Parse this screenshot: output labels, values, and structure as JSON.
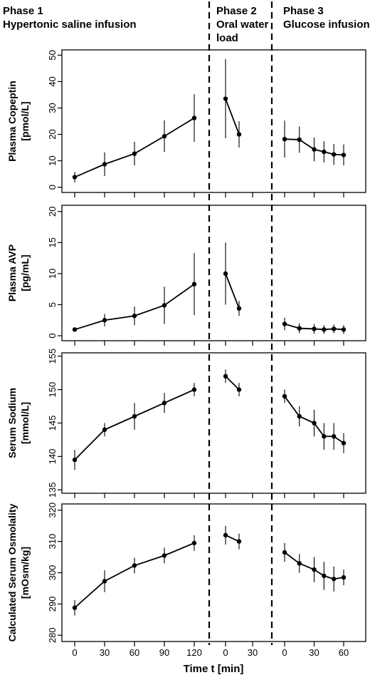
{
  "phases": [
    {
      "line1": "Phase 1",
      "line2": "Hypertonic saline infusion",
      "line3": ""
    },
    {
      "line1": "Phase 2",
      "line2": "Oral water",
      "line3": "load"
    },
    {
      "line1": "Phase 3",
      "line2": "Glucose infusion",
      "line3": ""
    }
  ],
  "x_axis": {
    "title": "Time t [min]",
    "tick_labels": [
      "0",
      "30",
      "60",
      "90",
      "120",
      "0",
      "30",
      "0",
      "30",
      "60"
    ]
  },
  "colors": {
    "line": "#000000",
    "background": "#ffffff"
  },
  "chart_data": [
    {
      "type": "line",
      "ylabel": [
        "Plasma Copeptin",
        "[pmol/L]"
      ],
      "ylim": [
        -2,
        52
      ],
      "yticks": [
        0,
        10,
        20,
        30,
        40,
        50
      ],
      "series": [
        {
          "phase": 1,
          "x": [
            0,
            30,
            60,
            90,
            120
          ],
          "y": [
            3.8,
            8.7,
            12.7,
            19.3,
            26.2
          ],
          "err": [
            2.0,
            4.5,
            4.5,
            6.0,
            9.0
          ]
        },
        {
          "phase": 2,
          "x": [
            0,
            15
          ],
          "y": [
            33.5,
            20.0
          ],
          "err": [
            15.0,
            5.0
          ]
        },
        {
          "phase": 3,
          "x": [
            0,
            15,
            30,
            40,
            50,
            60
          ],
          "y": [
            18.2,
            18.0,
            14.3,
            13.4,
            12.4,
            12.2
          ],
          "err": [
            7.0,
            5.0,
            4.5,
            4.0,
            4.0,
            4.0
          ]
        }
      ]
    },
    {
      "type": "line",
      "ylabel": [
        "Plasma AVP",
        "[pg/mL]"
      ],
      "ylim": [
        -0.8,
        21
      ],
      "yticks": [
        0,
        5,
        10,
        15,
        20
      ],
      "series": [
        {
          "phase": 1,
          "x": [
            0,
            30,
            60,
            90,
            120
          ],
          "y": [
            1.0,
            2.5,
            3.2,
            4.9,
            8.3
          ],
          "err": [
            0.3,
            1.0,
            1.5,
            3.0,
            5.0
          ]
        },
        {
          "phase": 2,
          "x": [
            0,
            15
          ],
          "y": [
            10.0,
            4.4
          ],
          "err": [
            5.0,
            1.2
          ]
        },
        {
          "phase": 3,
          "x": [
            0,
            15,
            30,
            40,
            50,
            60
          ],
          "y": [
            1.9,
            1.2,
            1.1,
            1.0,
            1.1,
            1.0
          ],
          "err": [
            1.0,
            0.8,
            0.8,
            0.7,
            0.7,
            0.7
          ]
        }
      ]
    },
    {
      "type": "line",
      "ylabel": [
        "Serum  Sodium",
        "[mmol/L]"
      ],
      "ylim": [
        134.5,
        155.5
      ],
      "yticks": [
        135,
        140,
        145,
        150,
        155
      ],
      "series": [
        {
          "phase": 1,
          "x": [
            0,
            30,
            60,
            90,
            120
          ],
          "y": [
            139.5,
            144.0,
            146.0,
            148.0,
            150.0
          ],
          "err": [
            1.5,
            1.0,
            2.0,
            1.5,
            1.0
          ]
        },
        {
          "phase": 2,
          "x": [
            0,
            15
          ],
          "y": [
            152.0,
            150.0
          ],
          "err": [
            1.0,
            1.0
          ]
        },
        {
          "phase": 3,
          "x": [
            0,
            15,
            30,
            40,
            50,
            60
          ],
          "y": [
            149.0,
            146.0,
            145.0,
            143.0,
            143.0,
            142.0
          ],
          "err": [
            1.0,
            1.5,
            2.0,
            2.0,
            2.0,
            1.5
          ]
        }
      ]
    },
    {
      "type": "line",
      "ylabel": [
        "Calculated  Serum Osmolality",
        "[mOsm/kg]"
      ],
      "ylim": [
        278,
        322
      ],
      "yticks": [
        280,
        290,
        300,
        310,
        320
      ],
      "series": [
        {
          "phase": 1,
          "x": [
            0,
            30,
            60,
            90,
            120
          ],
          "y": [
            288.8,
            297.3,
            302.3,
            305.5,
            309.5
          ],
          "err": [
            2.5,
            3.5,
            2.5,
            2.5,
            2.5
          ]
        },
        {
          "phase": 2,
          "x": [
            0,
            15
          ],
          "y": [
            312.0,
            310.0
          ],
          "err": [
            3.0,
            2.5
          ]
        },
        {
          "phase": 3,
          "x": [
            0,
            15,
            30,
            40,
            50,
            60
          ],
          "y": [
            306.5,
            303.0,
            301.0,
            299.0,
            298.0,
            298.5
          ],
          "err": [
            3.0,
            3.0,
            4.0,
            4.5,
            4.0,
            2.5
          ]
        }
      ]
    }
  ]
}
